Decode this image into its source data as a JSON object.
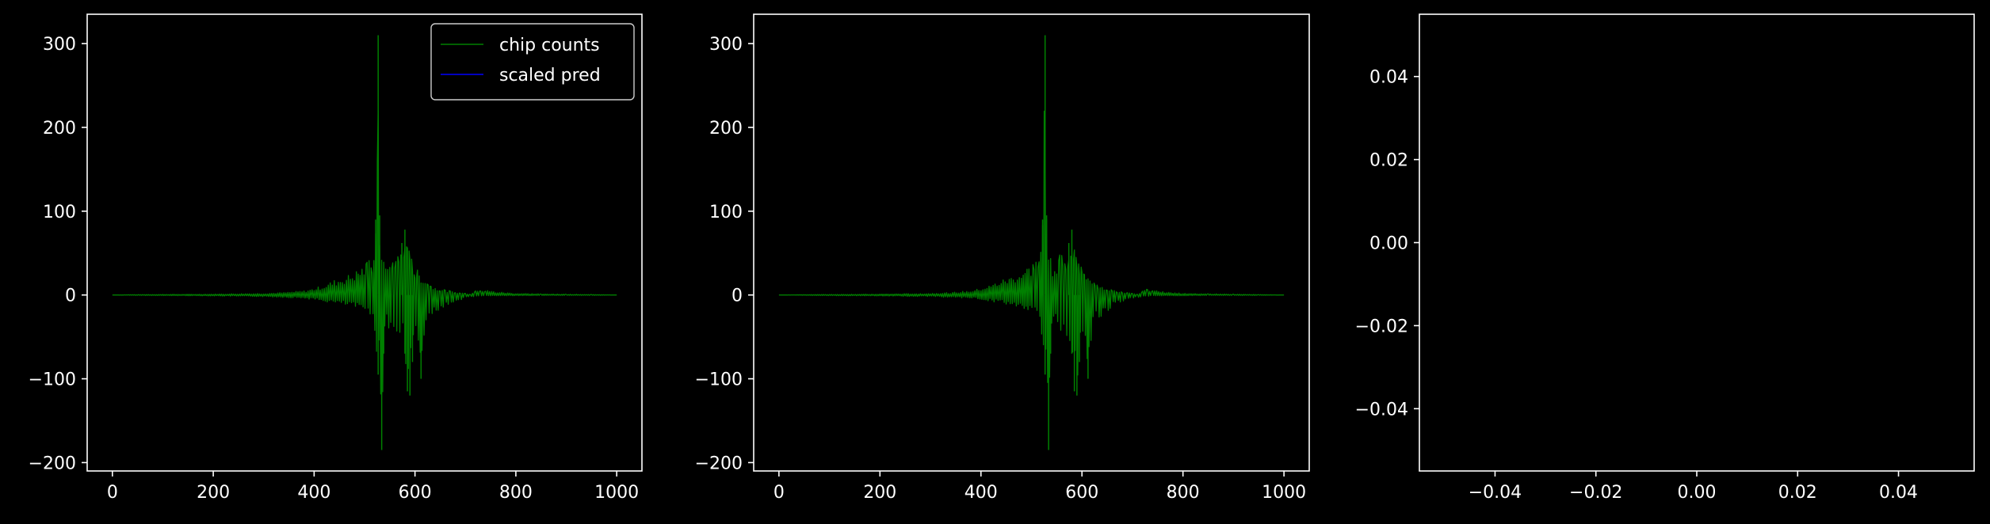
{
  "chart_data": [
    {
      "type": "line",
      "title": "",
      "xlabel": "",
      "ylabel": "",
      "xlim": [
        -50,
        1050
      ],
      "ylim": [
        -210,
        335
      ],
      "xticks": [
        0,
        200,
        400,
        600,
        800,
        1000
      ],
      "yticks": [
        -200,
        -100,
        0,
        100,
        200,
        300
      ],
      "grid": false,
      "legend": "top-right",
      "series": [
        {
          "name": "chip counts",
          "color": "#008000",
          "x": [
            0,
            60,
            120,
            180,
            240,
            300,
            340,
            380,
            400,
            420,
            440,
            460,
            480,
            495,
            505,
            515,
            522,
            527,
            530,
            534,
            538,
            542,
            546,
            550,
            556,
            562,
            568,
            574,
            580,
            585,
            590,
            595,
            600,
            605,
            612,
            620,
            626,
            632,
            640,
            650,
            660,
            670,
            680,
            690,
            700,
            710,
            720,
            730,
            740,
            760,
            780,
            800,
            850,
            900,
            950,
            1000
          ],
          "upper": [
            0,
            0.5,
            0.8,
            1,
            1.5,
            2,
            3,
            5,
            8,
            12,
            18,
            22,
            28,
            35,
            40,
            45,
            90,
            310,
            95,
            50,
            45,
            38,
            35,
            40,
            48,
            55,
            50,
            62,
            78,
            58,
            55,
            40,
            35,
            30,
            25,
            20,
            15,
            12,
            10,
            8,
            6,
            5,
            4,
            3,
            2,
            1,
            5,
            8,
            6,
            4,
            3,
            2,
            1.5,
            1,
            0.5,
            0
          ],
          "lower": [
            0,
            -0.5,
            -0.8,
            -1,
            -1.5,
            -2,
            -3,
            -4,
            -6,
            -8,
            -10,
            -12,
            -15,
            -18,
            -20,
            -28,
            -55,
            -95,
            -60,
            -185,
            -70,
            -40,
            -35,
            -45,
            -50,
            -40,
            -60,
            -50,
            -70,
            -115,
            -120,
            -80,
            -55,
            -45,
            -100,
            -50,
            -35,
            -30,
            -25,
            -20,
            -15,
            -10,
            -8,
            -6,
            -4,
            -3,
            -2,
            -1.5,
            -1,
            -1,
            -1,
            -1,
            -0.5,
            -0.5,
            -0.5,
            0
          ]
        },
        {
          "name": "scaled pred",
          "color": "#0000ff",
          "x": [],
          "upper": [],
          "lower": []
        }
      ]
    },
    {
      "type": "line",
      "title": "",
      "xlabel": "",
      "ylabel": "",
      "xlim": [
        -50,
        1050
      ],
      "ylim": [
        -210,
        335
      ],
      "xticks": [
        0,
        200,
        400,
        600,
        800,
        1000
      ],
      "yticks": [
        -200,
        -100,
        0,
        100,
        200,
        300
      ],
      "grid": false,
      "legend": "none",
      "series": [
        {
          "name": "",
          "color": "#008000",
          "x": [
            0,
            60,
            120,
            180,
            240,
            300,
            340,
            380,
            400,
            420,
            440,
            460,
            480,
            495,
            505,
            515,
            522,
            527,
            530,
            534,
            538,
            542,
            546,
            550,
            556,
            562,
            568,
            574,
            580,
            585,
            590,
            595,
            600,
            605,
            612,
            620,
            626,
            632,
            640,
            650,
            660,
            670,
            680,
            690,
            700,
            710,
            720,
            730,
            740,
            760,
            780,
            800,
            850,
            900,
            950,
            1000
          ],
          "upper": [
            0,
            0.5,
            0.8,
            1,
            1.5,
            2,
            3,
            5,
            8,
            12,
            18,
            22,
            28,
            35,
            40,
            45,
            90,
            310,
            95,
            50,
            45,
            38,
            35,
            40,
            48,
            55,
            50,
            62,
            78,
            58,
            55,
            40,
            35,
            30,
            25,
            20,
            15,
            12,
            10,
            8,
            6,
            5,
            4,
            3,
            2,
            1,
            5,
            8,
            6,
            4,
            3,
            2,
            1.5,
            1,
            0.5,
            0
          ],
          "lower": [
            0,
            -0.5,
            -0.8,
            -1,
            -1.5,
            -2,
            -3,
            -4,
            -6,
            -8,
            -10,
            -12,
            -15,
            -18,
            -20,
            -28,
            -55,
            -95,
            -60,
            -185,
            -70,
            -40,
            -35,
            -45,
            -50,
            -40,
            -60,
            -50,
            -70,
            -115,
            -120,
            -80,
            -55,
            -45,
            -100,
            -50,
            -35,
            -30,
            -25,
            -20,
            -15,
            -10,
            -8,
            -6,
            -4,
            -3,
            -2,
            -1.5,
            -1,
            -1,
            -1,
            -1,
            -0.5,
            -0.5,
            -0.5,
            0
          ]
        }
      ]
    },
    {
      "type": "line",
      "title": "",
      "xlabel": "",
      "ylabel": "",
      "xlim": [
        -0.055,
        0.055
      ],
      "ylim": [
        -0.055,
        0.055
      ],
      "xticks": [
        -0.04,
        -0.02,
        0.0,
        0.02,
        0.04
      ],
      "yticks": [
        -0.04,
        -0.02,
        0.0,
        0.02,
        0.04
      ],
      "xtick_labels": [
        "−0.04",
        "−0.02",
        "0.00",
        "0.02",
        "0.04"
      ],
      "ytick_labels": [
        "−0.04",
        "−0.02",
        "0.00",
        "0.02",
        "0.04"
      ],
      "grid": false,
      "legend": "none",
      "series": []
    }
  ],
  "colors": {
    "background": "#000000",
    "axes": "#ffffff",
    "text": "#ffffff"
  }
}
